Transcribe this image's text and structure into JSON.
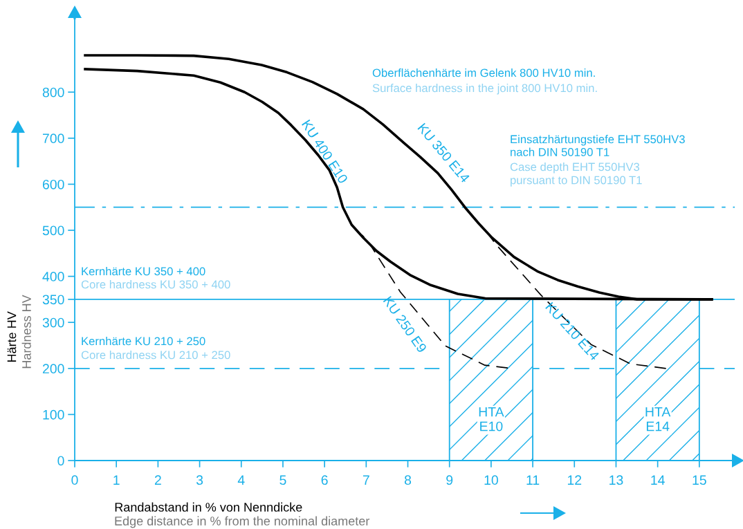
{
  "chart_data": {
    "type": "line",
    "xlabel": "Randabstand in % von Nenndicke",
    "ylabel": "Härte HV",
    "xlim": [
      0,
      15.85
    ],
    "ylim": [
      0,
      958
    ],
    "xticks": [
      0,
      1,
      2,
      3,
      4,
      5,
      6,
      7,
      8,
      9,
      10,
      11,
      12,
      13,
      14,
      15
    ],
    "yticks": [
      0,
      100,
      200,
      300,
      350,
      400,
      500,
      600,
      700,
      800
    ],
    "grid": false,
    "legend": false,
    "marker": "none",
    "series": [
      {
        "name": "KU 350 E14",
        "color": "#000000",
        "line_style": "solid",
        "x": [
          0.25,
          1.5,
          2.86,
          3.7,
          4.49,
          5.1,
          5.71,
          6.3,
          6.93,
          7.4,
          7.9,
          8.3,
          8.72,
          9.05,
          9.37,
          9.7,
          10.02,
          10.55,
          11.11,
          11.6,
          12.08,
          12.6,
          13.06,
          13.5,
          15.3
        ],
        "values": [
          880,
          880,
          879,
          872,
          859,
          843,
          822,
          796,
          763,
          730,
          690,
          659,
          624,
          588,
          550,
          515,
          484,
          442,
          411,
          392,
          378,
          365,
          356,
          350,
          350
        ]
      },
      {
        "name": "KU 400 E10",
        "color": "#000000",
        "line_style": "solid",
        "x": [
          0.25,
          1.5,
          2.86,
          3.5,
          4.08,
          4.5,
          4.89,
          5.2,
          5.54,
          5.85,
          6.12,
          6.3,
          6.44,
          6.65,
          6.93,
          7.25,
          7.58,
          8.05,
          8.55,
          9.2,
          9.86,
          15.3
        ],
        "values": [
          850,
          846,
          836,
          821,
          800,
          779,
          755,
          728,
          696,
          663,
          630,
          593,
          550,
          512,
          484,
          455,
          432,
          403,
          381,
          362,
          352,
          350
        ]
      },
      {
        "name": "KU 250 E9",
        "color": "#000000",
        "line_style": "dashed",
        "x": [
          6.9,
          7.08,
          7.82,
          8.9,
          9.85,
          10.4
        ],
        "values": [
          490,
          471,
          366,
          249,
          207,
          201
        ]
      },
      {
        "name": "KU 210 E14",
        "color": "#000000",
        "line_style": "dashed",
        "x": [
          9.95,
          10.1,
          11.2,
          12.4,
          13.35,
          14.2
        ],
        "values": [
          490,
          471,
          359,
          252,
          210,
          200
        ]
      },
      {
        "name": "HTA\nE10",
        "type": "area",
        "color": "#1ab0e8",
        "x": [
          9,
          11
        ],
        "values": [
          350,
          350
        ]
      },
      {
        "name": "HTA\nE14",
        "type": "area",
        "color": "#1ab0e8",
        "x": [
          13,
          15
        ],
        "values": [
          350,
          350
        ]
      }
    ],
    "ref_lines": [
      {
        "axis": "y",
        "value": 550,
        "label": "Einsatzhärtungstiefe EHT 550HV3\nnach DIN 50190 T1",
        "color": "#1ab0e8",
        "line_style": "dashdot"
      },
      {
        "axis": "y",
        "value": 350,
        "label": "Kernhärte KU 350 + 400",
        "color": "#1ab0e8",
        "line_style": "solid"
      },
      {
        "axis": "y",
        "value": 200,
        "label": "Kernhärte KU 210 + 250",
        "color": "#1ab0e8",
        "line_style": "dashed"
      }
    ],
    "annotations": [
      "Hardness HV",
      "Edge distance in % from the nominal diameter",
      "Oberflächenhärte im Gelenk 800 HV10 min.",
      "Surface hardness in the joint 800 HV10 min.",
      "Case depth EHT 550HV3\npursuant to DIN 50190 T1",
      "Core hardness KU 350 + 400",
      "Core hardness KU 210 + 250"
    ]
  }
}
